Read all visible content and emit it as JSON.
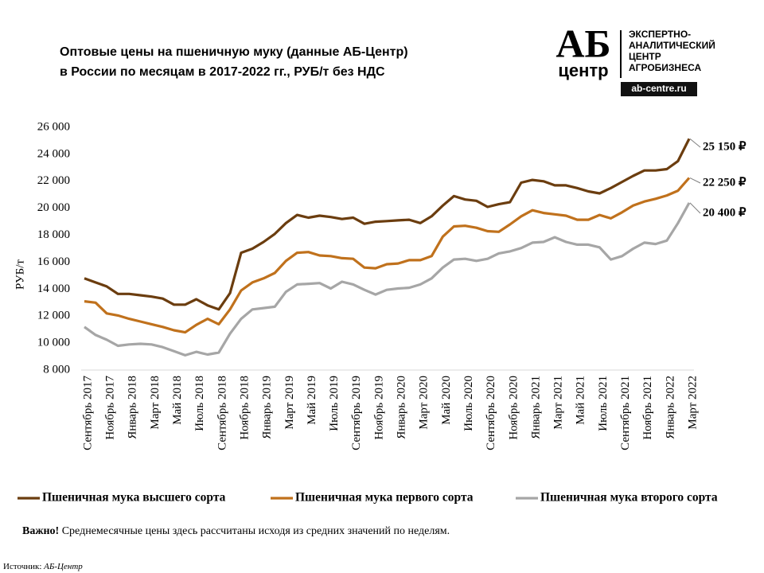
{
  "chart_data": {
    "type": "line",
    "title": [
      "Оптовые цены на пшеничную муку (данные АБ-Центр)",
      "в России по месяцам в 2017-2022 гг., РУБ/т без НДС"
    ],
    "y_label": "РУБ/т",
    "logo": {
      "mark": "АБ",
      "sub": "центр",
      "lines": [
        "ЭКСПЕРТНО-",
        "АНАЛИТИЧЕСКИЙ",
        "ЦЕНТР",
        "АГРОБИЗНЕСА"
      ],
      "site": "ab-centre.ru"
    },
    "note": {
      "bold": "Важно!",
      "text": "Среднемесячные цены здесь рассчитаны исходя из средних значений по неделям."
    },
    "source": {
      "label": "Источник:",
      "name": "АБ-Центр"
    },
    "categories": [
      "Сентябрь 2017",
      null,
      "Ноябрь 2017",
      null,
      "Январь 2018",
      null,
      "Март 2018",
      null,
      "Май 2018",
      null,
      "Июль 2018",
      null,
      "Сентябрь 2018",
      null,
      "Ноябрь 2018",
      null,
      "Январь 2019",
      null,
      "Март 2019",
      null,
      "Май 2019",
      null,
      "Июль 2019",
      null,
      "Сентябрь 2019",
      null,
      "Ноябрь 2019",
      null,
      "Январь 2020",
      null,
      "Март 2020",
      null,
      "Май 2020",
      null,
      "Июль 2020",
      null,
      "Сентябрь 2020",
      null,
      "Ноябрь 2020",
      null,
      "Январь 2021",
      null,
      "Март 2021",
      null,
      "Май 2021",
      null,
      "Июль 2021",
      null,
      "Сентябрь 2021",
      null,
      "Ноябрь 2021",
      null,
      "Январь 2022",
      null,
      "Март 2022"
    ],
    "series": [
      {
        "name": "Пшеничная мука высшего сорта",
        "color": "#6b3d0f",
        "last_label": "25 150 ₽",
        "values": [
          14800,
          14500,
          14200,
          13650,
          13650,
          13550,
          13450,
          13300,
          12850,
          12850,
          13250,
          12800,
          12500,
          13700,
          16700,
          17000,
          17500,
          18100,
          18900,
          19500,
          19300,
          19450,
          19350,
          19200,
          19300,
          18850,
          19000,
          19050,
          19100,
          19150,
          18900,
          19400,
          20200,
          20900,
          20650,
          20550,
          20100,
          20300,
          20450,
          21900,
          22100,
          22000,
          21700,
          21700,
          21500,
          21250,
          21100,
          21500,
          21950,
          22400,
          22800,
          22800,
          22900,
          23500,
          25150
        ]
      },
      {
        "name": "Пшеничная мука первого сорта",
        "color": "#c0711c",
        "last_label": "22 250 ₽",
        "values": [
          13100,
          13000,
          12200,
          12050,
          11800,
          11600,
          11400,
          11200,
          10950,
          10800,
          11350,
          11800,
          11400,
          12500,
          13900,
          14500,
          14800,
          15200,
          16100,
          16700,
          16750,
          16500,
          16450,
          16300,
          16250,
          15600,
          15550,
          15850,
          15900,
          16150,
          16150,
          16450,
          17900,
          18650,
          18700,
          18550,
          18300,
          18250,
          18800,
          19400,
          19850,
          19650,
          19550,
          19450,
          19150,
          19150,
          19500,
          19250,
          19700,
          20200,
          20500,
          20700,
          20950,
          21300,
          22250
        ]
      },
      {
        "name": "Пшеничная мука второго сорта",
        "color": "#a6a6a6",
        "last_label": "20 400 ₽",
        "values": [
          11200,
          10600,
          10250,
          9800,
          9900,
          9950,
          9900,
          9700,
          9400,
          9100,
          9350,
          9150,
          9300,
          10700,
          11800,
          12500,
          12600,
          12700,
          13800,
          14350,
          14400,
          14450,
          14050,
          14550,
          14350,
          13950,
          13600,
          13950,
          14050,
          14100,
          14350,
          14800,
          15600,
          16200,
          16250,
          16100,
          16250,
          16650,
          16800,
          17050,
          17450,
          17500,
          17850,
          17500,
          17300,
          17300,
          17100,
          16200,
          16450,
          17000,
          17450,
          17350,
          17600,
          18900,
          20400
        ]
      }
    ],
    "ylim": [
      8000,
      26000
    ],
    "yticks": [
      {
        "value": 8000,
        "label": "8 000"
      },
      {
        "value": 10000,
        "label": "10 000"
      },
      {
        "value": 12000,
        "label": "12 000"
      },
      {
        "value": 14000,
        "label": "14 000"
      },
      {
        "value": 16000,
        "label": "16 000"
      },
      {
        "value": 18000,
        "label": "18 000"
      },
      {
        "value": 20000,
        "label": "20 000"
      },
      {
        "value": 22000,
        "label": "22 000"
      },
      {
        "value": 24000,
        "label": "24 000"
      },
      {
        "value": 26000,
        "label": "26 000"
      }
    ],
    "grid": false
  }
}
